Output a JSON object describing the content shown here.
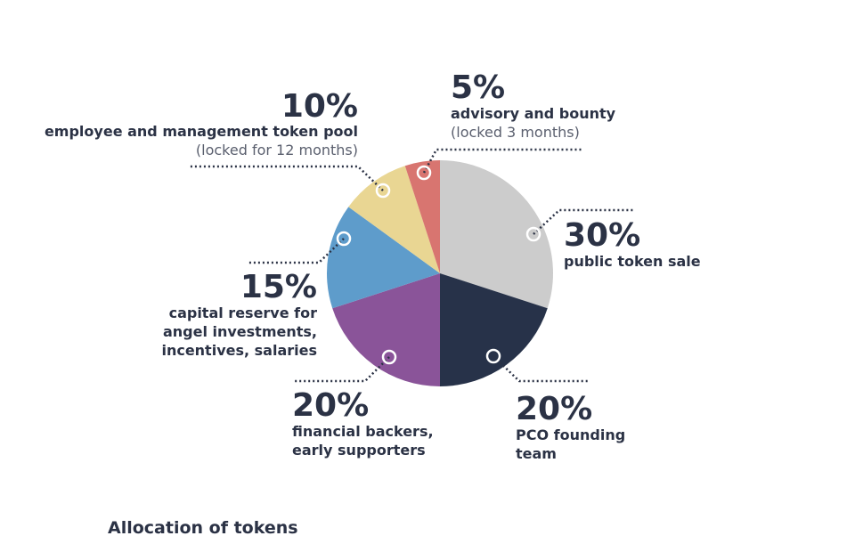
{
  "chart_data": {
    "type": "pie",
    "title": "Allocation of tokens",
    "start": "12 o'clock",
    "direction": "clockwise",
    "slices": [
      {
        "id": "public",
        "value": 30,
        "percent_label": "30%",
        "label_lines": [
          "public token sale"
        ],
        "note_lines": [],
        "color": "#cccccc"
      },
      {
        "id": "founding",
        "value": 20,
        "percent_label": "20%",
        "label_lines": [
          "PCO founding",
          "team"
        ],
        "note_lines": [],
        "color": "#273249"
      },
      {
        "id": "backers",
        "value": 20,
        "percent_label": "20%",
        "label_lines": [
          "financial backers,",
          "early supporters"
        ],
        "note_lines": [],
        "color": "#8a5499"
      },
      {
        "id": "reserve",
        "value": 15,
        "percent_label": "15%",
        "label_lines": [
          "capital reserve for",
          "angel investments,",
          "incentives, salaries"
        ],
        "note_lines": [],
        "color": "#5e9ccb"
      },
      {
        "id": "employee",
        "value": 10,
        "percent_label": "10%",
        "label_lines": [
          "employee and management token pool"
        ],
        "note_lines": [
          "(locked for 12 months)"
        ],
        "color": "#e9d693"
      },
      {
        "id": "advisory",
        "value": 5,
        "percent_label": "5%",
        "label_lines": [
          "advisory and bounty"
        ],
        "note_lines": [
          "(locked 3 months)"
        ],
        "color": "#d87570"
      }
    ]
  }
}
